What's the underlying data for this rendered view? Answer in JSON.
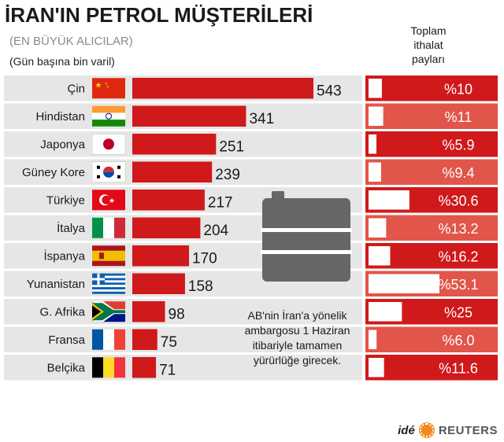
{
  "title": "İRAN'IN PETROL MÜŞTERİLERİ",
  "subtitle": "(EN BÜYÜK ALICILAR)",
  "unit": "(Gün başına bin varil)",
  "share_header": [
    "Toplam",
    "ithalat",
    "payları"
  ],
  "note": [
    "AB'nin İran'a yönelik",
    "ambargosu 1 Haziran",
    "itibariyle tamamen",
    "yürürlüğe girecek."
  ],
  "credit": {
    "ide": "idé",
    "reuters": "REUTERS"
  },
  "colors": {
    "bar": "#d0191b",
    "row_bg": "#e6e6e6",
    "share_dark": "#d0191b",
    "share_light": "#e2554a",
    "share_bar": "#ffffff",
    "barrel": "#666666"
  },
  "chart_data": {
    "type": "bar",
    "orientation": "horizontal",
    "categories": [
      "Çin",
      "Hindistan",
      "Japonya",
      "Güney Kore",
      "Türkiye",
      "İtalya",
      "İspanya",
      "Yunanistan",
      "G. Afrika",
      "Fransa",
      "Belçika"
    ],
    "values": [
      543,
      341,
      251,
      239,
      217,
      204,
      170,
      158,
      98,
      75,
      71
    ],
    "value_labels": [
      "543",
      "341",
      "251",
      "239",
      "217",
      "204",
      "170",
      "158",
      "98",
      "75",
      "71"
    ],
    "flags": [
      "china-flag",
      "india-flag",
      "japan-flag",
      "south-korea-flag",
      "turkey-flag",
      "italy-flag",
      "spain-flag",
      "greece-flag",
      "south-africa-flag",
      "france-flag",
      "belgium-flag"
    ],
    "share": {
      "values": [
        10,
        11,
        5.9,
        9.4,
        30.6,
        13.2,
        16.2,
        53.1,
        25,
        6.0,
        11.6
      ],
      "labels": [
        "%10",
        "%11",
        "%5.9",
        "%9.4",
        "%30.6",
        "%13.2",
        "%16.2",
        "%53.1",
        "%25",
        "%6.0",
        "%11.6"
      ]
    }
  }
}
